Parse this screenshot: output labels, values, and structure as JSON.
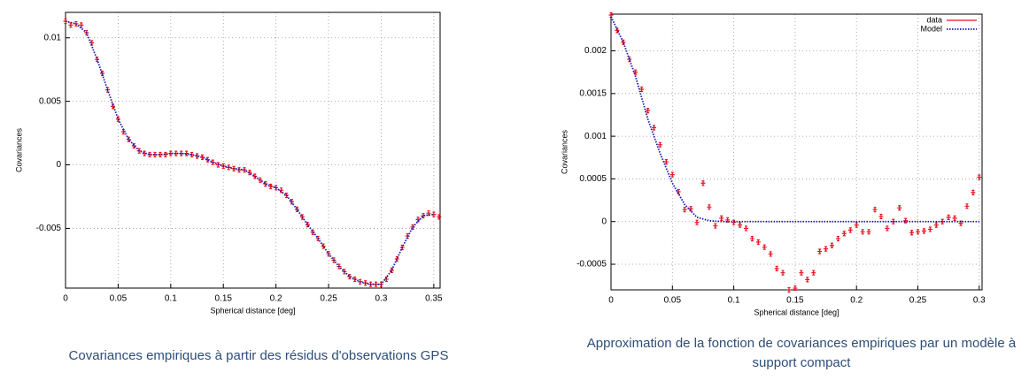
{
  "chart_data": [
    {
      "type": "scatter",
      "caption": "Covariances empiriques à partir des résidus d'observations GPS",
      "xlabel": "Spherical distance [deg]",
      "ylabel": "Covariances",
      "xlim": [
        0,
        0.356
      ],
      "ylim": [
        -0.0097,
        0.012
      ],
      "xticks": [
        0,
        0.05,
        0.1,
        0.15,
        0.2,
        0.25,
        0.3,
        0.35
      ],
      "yticks": [
        -0.005,
        0,
        0.005,
        0.01
      ],
      "grid": true,
      "series": [
        {
          "style": "points",
          "color": "#e8101e",
          "x": [
            0,
            0.005,
            0.01,
            0.015,
            0.02,
            0.025,
            0.03,
            0.035,
            0.04,
            0.045,
            0.05,
            0.055,
            0.06,
            0.065,
            0.07,
            0.075,
            0.08,
            0.085,
            0.09,
            0.095,
            0.1,
            0.105,
            0.11,
            0.115,
            0.12,
            0.125,
            0.13,
            0.135,
            0.14,
            0.145,
            0.15,
            0.155,
            0.16,
            0.165,
            0.17,
            0.175,
            0.18,
            0.185,
            0.19,
            0.195,
            0.2,
            0.205,
            0.21,
            0.215,
            0.22,
            0.225,
            0.23,
            0.235,
            0.24,
            0.245,
            0.25,
            0.255,
            0.26,
            0.265,
            0.27,
            0.275,
            0.28,
            0.285,
            0.29,
            0.295,
            0.3,
            0.305,
            0.31,
            0.315,
            0.32,
            0.325,
            0.33,
            0.335,
            0.34,
            0.345,
            0.35,
            0.355
          ],
          "values": [
            0.0113,
            0.011,
            0.0111,
            0.011,
            0.0104,
            0.0096,
            0.0083,
            0.0072,
            0.0059,
            0.0046,
            0.0036,
            0.0026,
            0.002,
            0.0015,
            0.0011,
            0.0009,
            0.0008,
            0.0008,
            0.0008,
            0.0008,
            0.0009,
            0.0009,
            0.0009,
            0.0009,
            0.0008,
            0.0007,
            0.0006,
            0.0004,
            0.0002,
            0.0,
            -0.0001,
            -0.0002,
            -0.0003,
            -0.0004,
            -0.0004,
            -0.0006,
            -0.0009,
            -0.0012,
            -0.0015,
            -0.0017,
            -0.0018,
            -0.002,
            -0.0024,
            -0.0029,
            -0.0035,
            -0.0041,
            -0.0047,
            -0.0053,
            -0.0058,
            -0.0064,
            -0.007,
            -0.0075,
            -0.008,
            -0.0084,
            -0.0088,
            -0.009,
            -0.0092,
            -0.0093,
            -0.0094,
            -0.0094,
            -0.0094,
            -0.009,
            -0.0083,
            -0.0074,
            -0.0065,
            -0.0056,
            -0.0049,
            -0.0043,
            -0.004,
            -0.0038,
            -0.0039,
            -0.0041
          ]
        },
        {
          "style": "dotted",
          "color": "#1a1aa8",
          "x": [
            0,
            0.01,
            0.02,
            0.03,
            0.04,
            0.05,
            0.06,
            0.07,
            0.08,
            0.09,
            0.1,
            0.11,
            0.12,
            0.13,
            0.14,
            0.15,
            0.16,
            0.17,
            0.18,
            0.19,
            0.2,
            0.21,
            0.22,
            0.23,
            0.24,
            0.25,
            0.26,
            0.27,
            0.28,
            0.29,
            0.3,
            0.31,
            0.32,
            0.33,
            0.34,
            0.35
          ],
          "values": [
            0.0113,
            0.0111,
            0.0104,
            0.0083,
            0.0059,
            0.0036,
            0.002,
            0.0011,
            0.0008,
            0.0008,
            0.0009,
            0.0009,
            0.0008,
            0.0006,
            0.0002,
            -0.0001,
            -0.0003,
            -0.0004,
            -0.0009,
            -0.0015,
            -0.0018,
            -0.0024,
            -0.0035,
            -0.0047,
            -0.0058,
            -0.007,
            -0.008,
            -0.0088,
            -0.0092,
            -0.0094,
            -0.0094,
            -0.0083,
            -0.0065,
            -0.0049,
            -0.004,
            -0.0039
          ]
        }
      ]
    },
    {
      "type": "scatter",
      "caption": "Approximation de la fonction de covariances empiriques par un modèle à support compact",
      "xlabel": "Spherical distance [deg]",
      "ylabel": "Covariances",
      "xlim": [
        0,
        0.3023
      ],
      "ylim": [
        -0.0008,
        0.00243
      ],
      "xticks": [
        0,
        0.05,
        0.1,
        0.15,
        0.2,
        0.25,
        0.3
      ],
      "yticks": [
        -0.0005,
        0,
        0.0005,
        0.001,
        0.0015,
        0.002
      ],
      "grid": true,
      "legend": "top-right",
      "series": [
        {
          "name": "data",
          "style": "points",
          "color": "#e8101e",
          "x": [
            0,
            0.005,
            0.01,
            0.015,
            0.02,
            0.025,
            0.03,
            0.035,
            0.04,
            0.045,
            0.05,
            0.055,
            0.06,
            0.065,
            0.07,
            0.075,
            0.08,
            0.085,
            0.09,
            0.095,
            0.1,
            0.105,
            0.11,
            0.115,
            0.12,
            0.125,
            0.13,
            0.135,
            0.14,
            0.145,
            0.15,
            0.155,
            0.16,
            0.165,
            0.17,
            0.175,
            0.18,
            0.185,
            0.19,
            0.195,
            0.2,
            0.205,
            0.21,
            0.215,
            0.22,
            0.225,
            0.23,
            0.235,
            0.24,
            0.245,
            0.25,
            0.255,
            0.26,
            0.265,
            0.27,
            0.275,
            0.28,
            0.285,
            0.29,
            0.295,
            0.3
          ],
          "values": [
            0.00242,
            0.00224,
            0.0021,
            0.0019,
            0.00175,
            0.00155,
            0.0013,
            0.0011,
            0.0009,
            0.0007,
            0.00055,
            0.00035,
            0.00014,
            0.00015,
            -1e-05,
            0.00045,
            0.00017,
            -5e-05,
            4e-05,
            2e-05,
            -1e-05,
            -4e-05,
            -8e-05,
            -0.0002,
            -0.00024,
            -0.0003,
            -0.00038,
            -0.00055,
            -0.0006,
            -0.0008,
            -0.00078,
            -0.0006,
            -0.00068,
            -0.0006,
            -0.00035,
            -0.00032,
            -0.00028,
            -0.0002,
            -0.00014,
            -0.0001,
            -4e-05,
            -0.00012,
            -0.00012,
            0.00014,
            6e-05,
            -8e-05,
            0,
            0.00016,
            1e-05,
            -0.00013,
            -0.00012,
            -0.00011,
            -9e-05,
            -4e-05,
            0,
            5e-05,
            4e-05,
            -2e-05,
            0.00018,
            0.00034,
            0.00052
          ]
        },
        {
          "name": "Model",
          "style": "dotted",
          "color": "#1a1aa8",
          "x": [
            0,
            0.01,
            0.02,
            0.03,
            0.04,
            0.05,
            0.06,
            0.07,
            0.08,
            0.09,
            0.1,
            0.3
          ],
          "values": [
            0.0024,
            0.0021,
            0.0017,
            0.0012,
            0.0008,
            0.00045,
            0.0002,
            5e-05,
            1e-05,
            0,
            0,
            0
          ]
        }
      ]
    }
  ]
}
